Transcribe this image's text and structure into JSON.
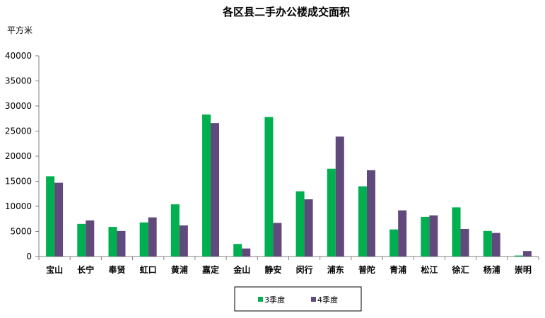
{
  "chart_data": {
    "type": "bar",
    "title": "各区县二手办公楼成交面积",
    "unit_label": "平方米",
    "ylim": [
      0,
      40000
    ],
    "yticks": [
      0,
      5000,
      10000,
      15000,
      20000,
      25000,
      30000,
      35000,
      40000
    ],
    "grid": false,
    "legend_position": "bottom",
    "categories": [
      "宝山",
      "长宁",
      "奉贤",
      "虹口",
      "黄浦",
      "嘉定",
      "金山",
      "静安",
      "闵行",
      "浦东",
      "普陀",
      "青浦",
      "松江",
      "徐汇",
      "杨浦",
      "崇明"
    ],
    "series": [
      {
        "name": "3季度",
        "color": "#00b050",
        "values": [
          16000,
          6500,
          5900,
          6800,
          10400,
          28300,
          2500,
          27800,
          13000,
          17500,
          14000,
          5400,
          7900,
          9800,
          5100,
          200
        ]
      },
      {
        "name": "4季度",
        "color": "#604a7b",
        "values": [
          14700,
          7200,
          5100,
          7800,
          6200,
          26600,
          1600,
          6700,
          11400,
          23900,
          17200,
          9200,
          8200,
          5500,
          4700,
          1100
        ]
      }
    ]
  }
}
